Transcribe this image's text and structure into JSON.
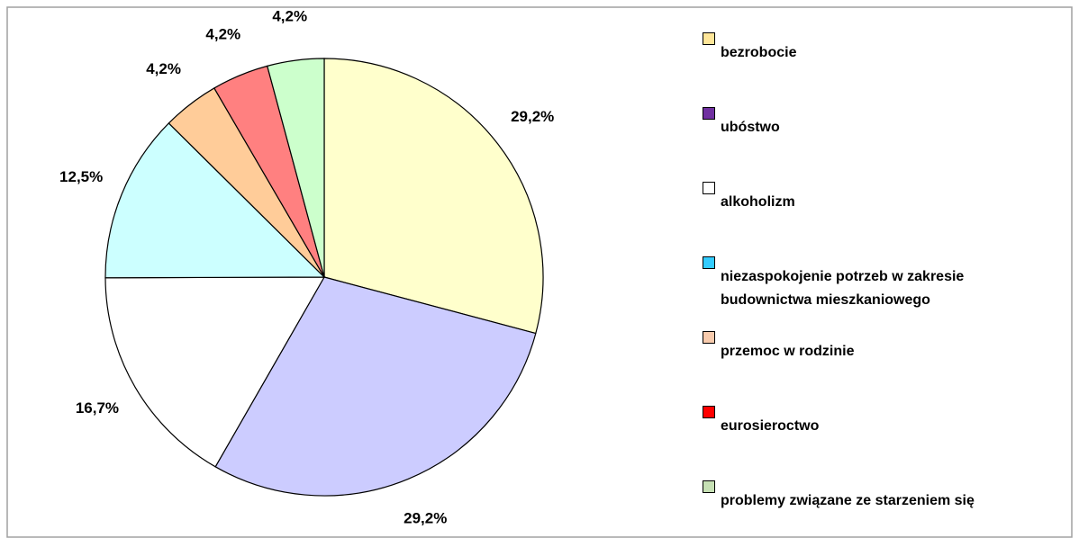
{
  "chart_data": {
    "type": "pie",
    "labels": [
      "bezrobocie",
      "ubóstwo",
      "alkoholizm",
      "niezaspokojenie potrzeb w zakresie budownictwa mieszkaniowego",
      "przemoc w rodzinie",
      "eurosieroctwo",
      "problemy związane ze starzeniem się"
    ],
    "values": [
      29.2,
      29.2,
      16.7,
      12.5,
      4.2,
      4.2,
      4.2
    ],
    "value_labels": [
      "29,2%",
      "29,2%",
      "16,7%",
      "12,5%",
      "4,2%",
      "4,2%",
      "4,2%"
    ],
    "colors": [
      "#ffffcc",
      "#ccccff",
      "#ffffff",
      "#ccffff",
      "#ffcc99",
      "#ff8080",
      "#ccffcc"
    ],
    "legend_colors": [
      "#ffe699",
      "#7030a0",
      "#ffffff",
      "#33ccff",
      "#f8cbad",
      "#ff0000",
      "#c6e0b4"
    ],
    "legend_position": "right"
  }
}
